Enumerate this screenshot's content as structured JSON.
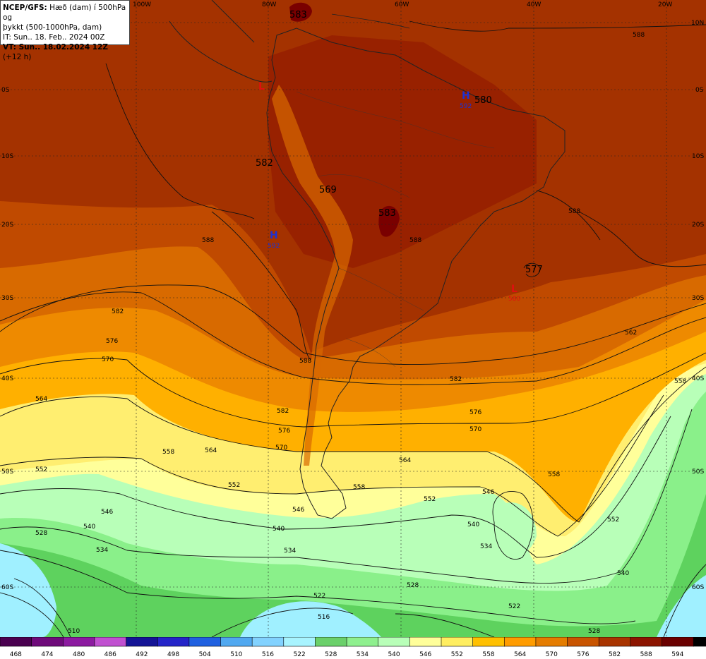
{
  "info": {
    "line1_bold": "NCEP/GFS:",
    "line1_rest": " Hæð (dam) í 500hPa og",
    "line2": "þykkt (500-1000hPa, dam)",
    "line3": "IT: Sun.. 18. Feb.. 2024 00Z",
    "line4_bold": "VT: Sun.. 18.02.2024 12Z",
    "line4_rest": " (+12 h)"
  },
  "colors": {
    "c594": "#2a0000",
    "c588": "#7a0000",
    "c582": "#8e1400",
    "c576": "#a43200",
    "c570": "#c04a00",
    "c564": "#d86a00",
    "c558": "#ee8a00",
    "c552": "#ffb000",
    "c546": "#ffee70",
    "c540": "#ffff9a",
    "c534": "#b8ffb8",
    "c528": "#8af08a",
    "c522": "#5ed25e",
    "c516": "#a0f0ff",
    "c510": "#60c0ff",
    "land_line": "#222222"
  },
  "lon_labels": [
    "100W",
    "80W",
    "60W",
    "40W",
    "20W"
  ],
  "lat_labels_left": [
    "0S",
    "10S",
    "20S",
    "30S",
    "40S",
    "50S",
    "60S"
  ],
  "lat_labels_right": [
    "10N",
    "0S",
    "10S",
    "20S",
    "30S",
    "40S",
    "50S",
    "60S"
  ],
  "big_values": [
    "583",
    "580",
    "582",
    "569",
    "583",
    "577"
  ],
  "highs": [
    {
      "symbol": "H",
      "value": "592"
    },
    {
      "symbol": "H",
      "value": "592"
    }
  ],
  "lows": [
    {
      "symbol": "L",
      "value": ""
    },
    {
      "symbol": "L",
      "value": "580"
    }
  ],
  "contour_labels": [
    "588",
    "588",
    "588",
    "582",
    "582",
    "582",
    "576",
    "576",
    "570",
    "570",
    "564",
    "564",
    "564",
    "558",
    "558",
    "558",
    "552",
    "552",
    "552",
    "552",
    "546",
    "546",
    "546",
    "540",
    "540",
    "540",
    "540",
    "534",
    "534",
    "534",
    "528",
    "528",
    "528",
    "522",
    "522",
    "516",
    "510",
    "588",
    "588",
    "562",
    "576",
    "570",
    "558"
  ],
  "legend": {
    "values": [
      "468",
      "474",
      "480",
      "486",
      "492",
      "498",
      "504",
      "510",
      "516",
      "522",
      "528",
      "534",
      "540",
      "546",
      "552",
      "558",
      "564",
      "570",
      "576",
      "582",
      "588",
      "594"
    ],
    "colors": [
      "#4a0050",
      "#6e0a7a",
      "#8c1aa0",
      "#c050d0",
      "#141496",
      "#2424c8",
      "#2060e0",
      "#50a8f0",
      "#82d2ff",
      "#a8f4ff",
      "#6ad06a",
      "#8ef08e",
      "#b8ffb8",
      "#ffff9a",
      "#ffee60",
      "#ffc000",
      "#ff9c00",
      "#e47c00",
      "#c85400",
      "#a83400",
      "#8c1400",
      "#6a0000",
      "#000000"
    ]
  }
}
